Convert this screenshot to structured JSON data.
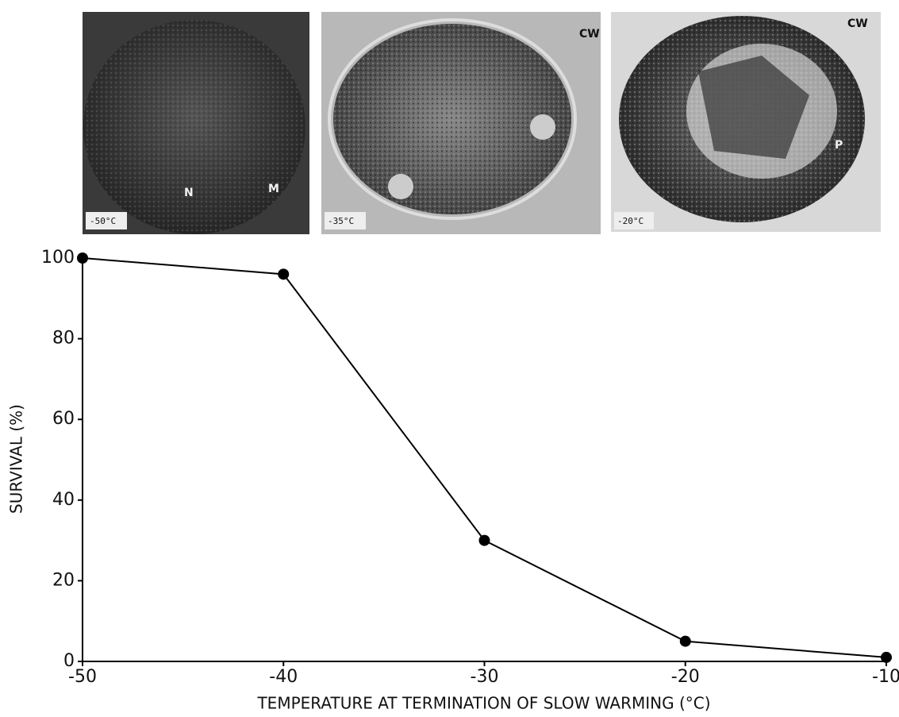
{
  "micrographs": [
    {
      "label": "-50°C",
      "annotations": [
        "N",
        "M"
      ]
    },
    {
      "label": "-35°C",
      "annotations": [
        "CW"
      ]
    },
    {
      "label": "-20°C",
      "annotations": [
        "CW",
        "P"
      ]
    }
  ],
  "chart_data": {
    "type": "line",
    "x_label": "TEMPERATURE AT TERMINATION OF SLOW WARMING (°C)",
    "y_label": "SURVIVAL (%)",
    "x": [
      -50,
      -40,
      -30,
      -20,
      -10
    ],
    "series": [
      {
        "color": "#000000",
        "values": [
          100,
          96,
          30,
          5,
          1
        ]
      }
    ],
    "xlim": [
      -50,
      -10
    ],
    "xticks": [
      -50,
      -40,
      -30,
      -20,
      -10
    ],
    "ylim": [
      0,
      100
    ],
    "yticks": [
      0,
      20,
      40,
      60,
      80,
      100
    ],
    "grid": false
  }
}
